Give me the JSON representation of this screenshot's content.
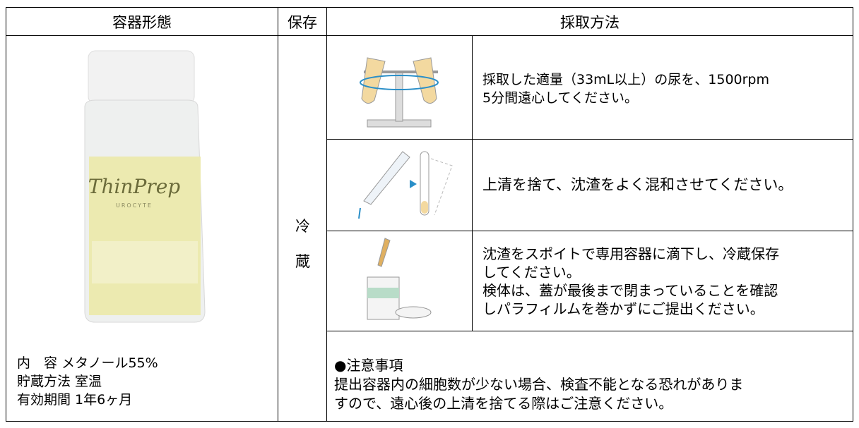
{
  "table": {
    "header": [
      "容器形態",
      "保存",
      "採取方法"
    ]
  },
  "container": {
    "image_label": [
      "ThinPrep",
      "UROCYTE"
    ],
    "info": [
      "内　容 メタノール55%",
      "貯蔵方法 室温",
      "有効期間 1年6ヶ月"
    ]
  },
  "storage": [
    "冷",
    "蔵"
  ],
  "steps": [
    [
      "採取した適量（33mL以上）の尿を、1500rpm",
      "5分間遠心してください。"
    ],
    [
      "上清を捨て、沈渣をよく混和させてください。"
    ],
    [
      "沈渣をスポイトで専用容器に滴下し、冷蔵保存",
      "してください。",
      "検体は、蓋が最後まで閉まっていることを確認",
      "しパラフィルムを巻かずにご提出ください。"
    ]
  ],
  "note": {
    "title": "●注意事項",
    "lines": [
      "提出容器内の細胞数が少ない場合、検査不能となる恐れがありま",
      "すので、遠心後の上清を捨てる際はご注意ください。"
    ]
  }
}
